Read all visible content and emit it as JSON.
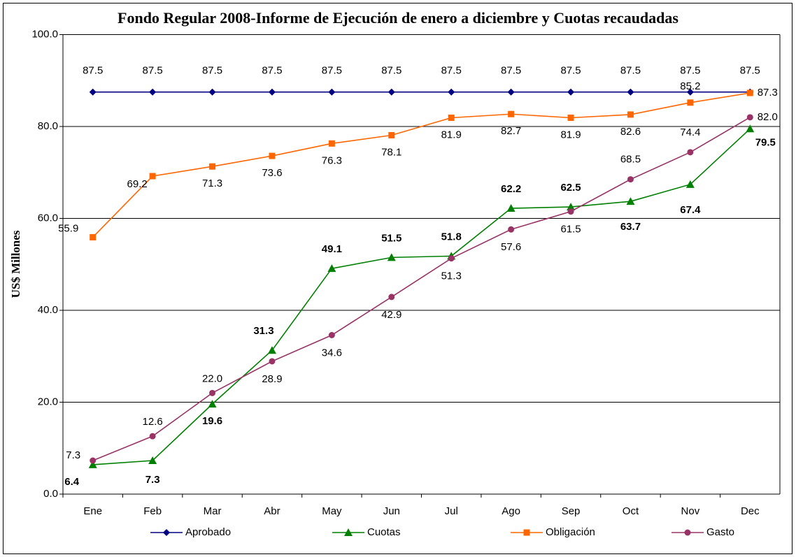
{
  "chart_data": {
    "type": "line",
    "title": "Fondo Regular 2008-Informe de Ejecución de enero a diciembre y Cuotas recaudadas",
    "y_label": "US$ Millones",
    "categories": [
      "Ene",
      "Feb",
      "Mar",
      "Abr",
      "May",
      "Jun",
      "Jul",
      "Ago",
      "Sep",
      "Oct",
      "Nov",
      "Dec"
    ],
    "ylim": [
      0,
      100
    ],
    "yticks": [
      {
        "value": 0,
        "label": "0.0"
      },
      {
        "value": 20,
        "label": "20.0"
      },
      {
        "value": 40,
        "label": "40.0"
      },
      {
        "value": 60,
        "label": "60.0"
      },
      {
        "value": 80,
        "label": "80.0"
      },
      {
        "value": 100,
        "label": "100.0"
      }
    ],
    "grid": true,
    "legend": "bottom",
    "series": [
      {
        "name": "Aprobado",
        "color": "#000080",
        "marker": "diamond",
        "values": [
          87.5,
          87.5,
          87.5,
          87.5,
          87.5,
          87.5,
          87.5,
          87.5,
          87.5,
          87.5,
          87.5,
          87.5
        ]
      },
      {
        "name": "Cuotas",
        "color": "#008000",
        "marker": "triangle",
        "values": [
          6.4,
          7.3,
          19.6,
          31.3,
          49.1,
          51.5,
          51.8,
          62.2,
          62.5,
          63.7,
          67.4,
          79.5
        ]
      },
      {
        "name": "Obligación",
        "color": "#FF6600",
        "marker": "square",
        "values": [
          55.9,
          69.2,
          71.3,
          73.6,
          76.3,
          78.1,
          81.9,
          82.7,
          81.9,
          82.6,
          85.2,
          87.3
        ]
      },
      {
        "name": "Gasto",
        "color": "#993366",
        "marker": "circle",
        "values": [
          7.3,
          12.6,
          22.0,
          28.9,
          34.6,
          42.9,
          51.3,
          57.6,
          61.5,
          68.5,
          74.4,
          82.0
        ],
        "value_labels": [
          "7.3",
          "12.6",
          "22.0",
          "28.9",
          "34.6",
          "42.9",
          "51.3",
          "57.6",
          "61.5",
          "68.5",
          "74.4",
          "82.0"
        ]
      }
    ]
  }
}
